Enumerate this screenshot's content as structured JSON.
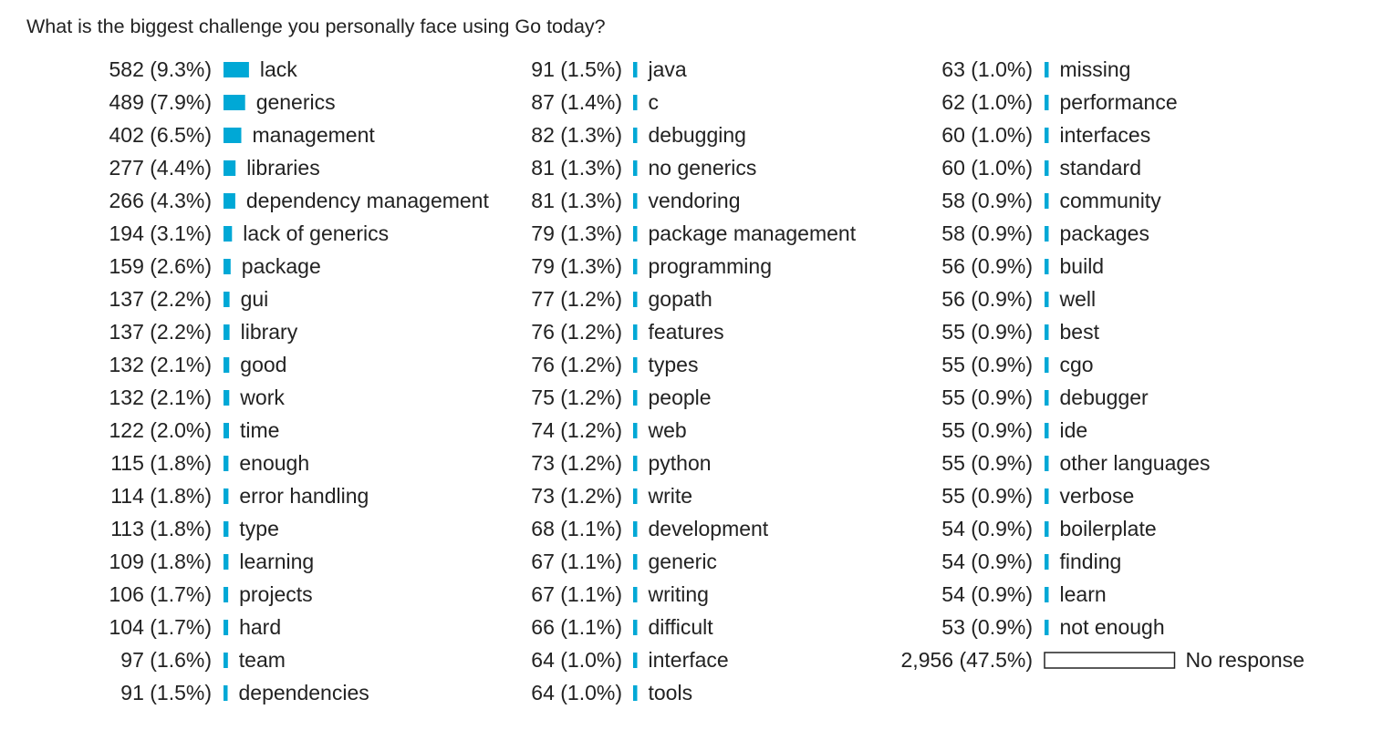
{
  "chart_data": {
    "type": "bar",
    "title": "What is the biggest challenge you personally face using Go today?",
    "bar_color": "#00a8d6",
    "no_response_fill": "#ffffff",
    "no_response_stroke": "#222222",
    "columns": [
      [
        {
          "label": "lack",
          "count": "582",
          "pct": 9.3
        },
        {
          "label": "generics",
          "count": "489",
          "pct": 7.9
        },
        {
          "label": "management",
          "count": "402",
          "pct": 6.5
        },
        {
          "label": "libraries",
          "count": "277",
          "pct": 4.4
        },
        {
          "label": "dependency management",
          "count": "266",
          "pct": 4.3
        },
        {
          "label": "lack of generics",
          "count": "194",
          "pct": 3.1
        },
        {
          "label": "package",
          "count": "159",
          "pct": 2.6
        },
        {
          "label": "gui",
          "count": "137",
          "pct": 2.2
        },
        {
          "label": "library",
          "count": "137",
          "pct": 2.2
        },
        {
          "label": "good",
          "count": "132",
          "pct": 2.1
        },
        {
          "label": "work",
          "count": "132",
          "pct": 2.1
        },
        {
          "label": "time",
          "count": "122",
          "pct": 2.0
        },
        {
          "label": "enough",
          "count": "115",
          "pct": 1.8
        },
        {
          "label": "error handling",
          "count": "114",
          "pct": 1.8
        },
        {
          "label": "type",
          "count": "113",
          "pct": 1.8
        },
        {
          "label": "learning",
          "count": "109",
          "pct": 1.8
        },
        {
          "label": "projects",
          "count": "106",
          "pct": 1.7
        },
        {
          "label": "hard",
          "count": "104",
          "pct": 1.7
        },
        {
          "label": "team",
          "count": "97",
          "pct": 1.6
        },
        {
          "label": "dependencies",
          "count": "91",
          "pct": 1.5
        }
      ],
      [
        {
          "label": "java",
          "count": "91",
          "pct": 1.5
        },
        {
          "label": "c",
          "count": "87",
          "pct": 1.4
        },
        {
          "label": "debugging",
          "count": "82",
          "pct": 1.3
        },
        {
          "label": "no generics",
          "count": "81",
          "pct": 1.3
        },
        {
          "label": "vendoring",
          "count": "81",
          "pct": 1.3
        },
        {
          "label": "package management",
          "count": "79",
          "pct": 1.3
        },
        {
          "label": "programming",
          "count": "79",
          "pct": 1.3
        },
        {
          "label": "gopath",
          "count": "77",
          "pct": 1.2
        },
        {
          "label": "features",
          "count": "76",
          "pct": 1.2
        },
        {
          "label": "types",
          "count": "76",
          "pct": 1.2
        },
        {
          "label": "people",
          "count": "75",
          "pct": 1.2
        },
        {
          "label": "web",
          "count": "74",
          "pct": 1.2
        },
        {
          "label": "python",
          "count": "73",
          "pct": 1.2
        },
        {
          "label": "write",
          "count": "73",
          "pct": 1.2
        },
        {
          "label": "development",
          "count": "68",
          "pct": 1.1
        },
        {
          "label": "generic",
          "count": "67",
          "pct": 1.1
        },
        {
          "label": "writing",
          "count": "67",
          "pct": 1.1
        },
        {
          "label": "difficult",
          "count": "66",
          "pct": 1.1
        },
        {
          "label": "interface",
          "count": "64",
          "pct": 1.0
        },
        {
          "label": "tools",
          "count": "64",
          "pct": 1.0
        }
      ],
      [
        {
          "label": "missing",
          "count": "63",
          "pct": 1.0
        },
        {
          "label": "performance",
          "count": "62",
          "pct": 1.0
        },
        {
          "label": "interfaces",
          "count": "60",
          "pct": 1.0
        },
        {
          "label": "standard",
          "count": "60",
          "pct": 1.0
        },
        {
          "label": "community",
          "count": "58",
          "pct": 0.9
        },
        {
          "label": "packages",
          "count": "58",
          "pct": 0.9
        },
        {
          "label": "build",
          "count": "56",
          "pct": 0.9
        },
        {
          "label": "well",
          "count": "56",
          "pct": 0.9
        },
        {
          "label": "best",
          "count": "55",
          "pct": 0.9
        },
        {
          "label": "cgo",
          "count": "55",
          "pct": 0.9
        },
        {
          "label": "debugger",
          "count": "55",
          "pct": 0.9
        },
        {
          "label": "ide",
          "count": "55",
          "pct": 0.9
        },
        {
          "label": "other languages",
          "count": "55",
          "pct": 0.9
        },
        {
          "label": "verbose",
          "count": "55",
          "pct": 0.9
        },
        {
          "label": "boilerplate",
          "count": "54",
          "pct": 0.9
        },
        {
          "label": "finding",
          "count": "54",
          "pct": 0.9
        },
        {
          "label": "learn",
          "count": "54",
          "pct": 0.9
        },
        {
          "label": "not enough",
          "count": "53",
          "pct": 0.9
        },
        {
          "label": "No response",
          "count": "2,956",
          "pct": 47.5,
          "no_response": true
        }
      ]
    ]
  }
}
